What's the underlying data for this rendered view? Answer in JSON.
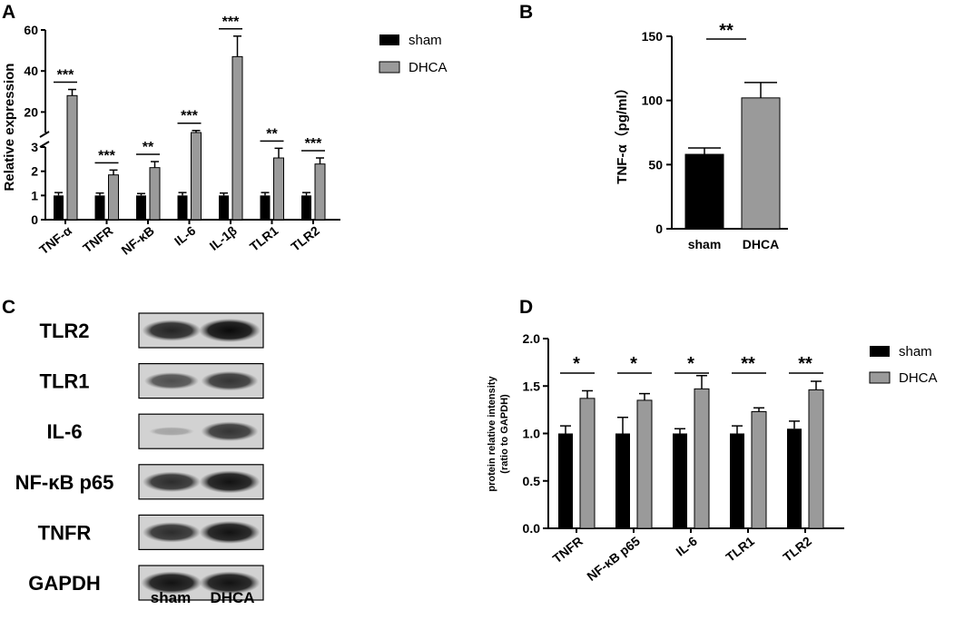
{
  "panels": {
    "a": "A",
    "b": "B",
    "c": "C",
    "d": "D"
  },
  "colors": {
    "sham": "#000000",
    "dhca": "#9a9a9a",
    "axis": "#000000"
  },
  "chart_data": [
    {
      "id": "A",
      "type": "bar",
      "ylabel": "Relative expression",
      "categories": [
        "TNF-α",
        "TNFR",
        "NF-κB",
        "IL-6",
        "IL-1β",
        "TLR1",
        "TLR2"
      ],
      "axis_break": {
        "lower": [
          0,
          3
        ],
        "upper": [
          10,
          60
        ]
      },
      "lower_ticks": [
        "0",
        "1",
        "2",
        "3"
      ],
      "upper_ticks": [
        "20",
        "40",
        "60"
      ],
      "series": [
        {
          "name": "sham",
          "values": [
            1.0,
            1.0,
            1.0,
            1.0,
            1.0,
            1.0,
            1.0
          ],
          "errors": [
            0.12,
            0.1,
            0.08,
            0.12,
            0.1,
            0.12,
            0.12
          ]
        },
        {
          "name": "DHCA",
          "values": [
            28,
            1.85,
            2.15,
            10,
            47,
            2.55,
            2.3
          ],
          "errors": [
            3,
            0.2,
            0.25,
            1,
            10,
            0.4,
            0.25
          ]
        }
      ],
      "significance": [
        "***",
        "***",
        "**",
        "***",
        "***",
        "**",
        "***"
      ],
      "legend": [
        "sham",
        "DHCA"
      ],
      "legend_position": "top-right"
    },
    {
      "id": "B",
      "type": "bar",
      "ylabel": "TNF-α（pg/ml）",
      "ylim": [
        0,
        150
      ],
      "yticks": [
        "0",
        "50",
        "100",
        "150"
      ],
      "categories": [
        "sham",
        "DHCA"
      ],
      "values": [
        58,
        102
      ],
      "errors": [
        5,
        12
      ],
      "significance": "**"
    },
    {
      "id": "D",
      "type": "bar",
      "ylabel_lines": [
        "protein relative intensity",
        "(ratio to GAPDH)"
      ],
      "ylim": [
        0,
        2.0
      ],
      "yticks": [
        "0.0",
        "0.5",
        "1.0",
        "1.5",
        "2.0"
      ],
      "categories": [
        "TNFR",
        "NF-κB p65",
        "IL-6",
        "TLR1",
        "TLR2"
      ],
      "series": [
        {
          "name": "sham",
          "values": [
            1.0,
            1.0,
            1.0,
            1.0,
            1.05
          ],
          "errors": [
            0.08,
            0.17,
            0.05,
            0.08,
            0.08
          ]
        },
        {
          "name": "DHCA",
          "values": [
            1.37,
            1.35,
            1.47,
            1.23,
            1.46
          ],
          "errors": [
            0.08,
            0.07,
            0.14,
            0.04,
            0.09
          ]
        }
      ],
      "significance": [
        "*",
        "*",
        "*",
        "**",
        "**"
      ],
      "legend": [
        "sham",
        "DHCA"
      ],
      "legend_position": "top-right"
    }
  ],
  "blot": {
    "rows": [
      {
        "label": "TLR2",
        "sham": 0.85,
        "dhca": 1.0
      },
      {
        "label": "TLR1",
        "sham": 0.6,
        "dhca": 0.75
      },
      {
        "label": "IL-6",
        "sham": 0.1,
        "dhca": 0.75
      },
      {
        "label": "NF-κB p65",
        "sham": 0.8,
        "dhca": 0.95
      },
      {
        "label": "TNFR",
        "sham": 0.8,
        "dhca": 0.95
      },
      {
        "label": "GAPDH",
        "sham": 0.95,
        "dhca": 0.95
      }
    ],
    "lanes": [
      "sham",
      "DHCA"
    ]
  }
}
